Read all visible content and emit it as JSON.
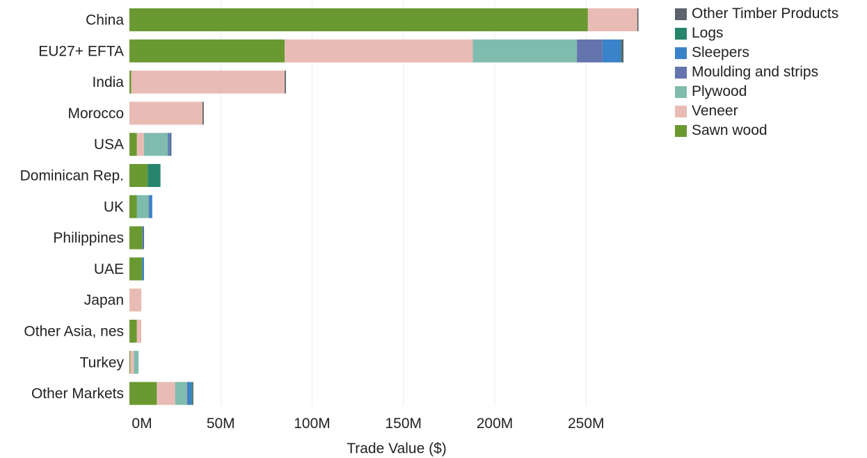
{
  "chart_data": {
    "type": "bar",
    "orientation": "horizontal",
    "stacked": true,
    "xlabel": "Trade Value ($)",
    "ylabel": "",
    "xlim": [
      0,
      290
    ],
    "value_unit": "M",
    "x_ticks": [
      "0M",
      "50M",
      "100M",
      "150M",
      "200M",
      "250M"
    ],
    "x_tick_values": [
      0,
      50,
      100,
      150,
      200,
      250
    ],
    "grid": true,
    "legend_position": "top-right",
    "categories": [
      "China",
      "EU27+ EFTA",
      "India",
      "Morocco",
      "USA",
      "Dominican Rep.",
      "UK",
      "Philippines",
      "UAE",
      "Japan",
      "Other Asia, nes",
      "Turkey",
      "Other Markets"
    ],
    "series": [
      {
        "name": "Sawn wood",
        "color": "#6a9931",
        "values": [
          251,
          85,
          1,
          0,
          4,
          10,
          4,
          7,
          7,
          0,
          4,
          0.5,
          15
        ]
      },
      {
        "name": "Veneer",
        "color": "#e8bcb5",
        "values": [
          27,
          103,
          84,
          40,
          4,
          0,
          0,
          0,
          0,
          6.5,
          2.5,
          2,
          10
        ]
      },
      {
        "name": "Plywood",
        "color": "#80bcad",
        "values": [
          0,
          57,
          0,
          0,
          13,
          0,
          6.5,
          0,
          0,
          0,
          0,
          2.5,
          6.5
        ]
      },
      {
        "name": "Moulding and strips",
        "color": "#6474ad",
        "values": [
          0,
          14,
          0,
          0,
          1,
          0,
          0.5,
          0,
          0,
          0,
          0,
          0,
          0.5
        ]
      },
      {
        "name": "Sleepers",
        "color": "#3a82c9",
        "values": [
          0,
          10,
          0,
          0,
          0.5,
          0,
          1.5,
          0.5,
          1,
          0,
          0,
          0,
          2
        ]
      },
      {
        "name": "Logs",
        "color": "#27856e",
        "values": [
          0,
          0.5,
          0,
          0,
          0,
          7,
          0,
          0,
          0,
          0,
          0,
          0,
          0.5
        ]
      },
      {
        "name": "Other Timber Products",
        "color": "#5d636c",
        "values": [
          0.7,
          1,
          0.7,
          0.7,
          0.5,
          0,
          0,
          0.5,
          0,
          0,
          0,
          0,
          0.5
        ]
      }
    ],
    "legend_order": [
      "Other Timber Products",
      "Logs",
      "Sleepers",
      "Moulding and strips",
      "Plywood",
      "Veneer",
      "Sawn wood"
    ]
  }
}
